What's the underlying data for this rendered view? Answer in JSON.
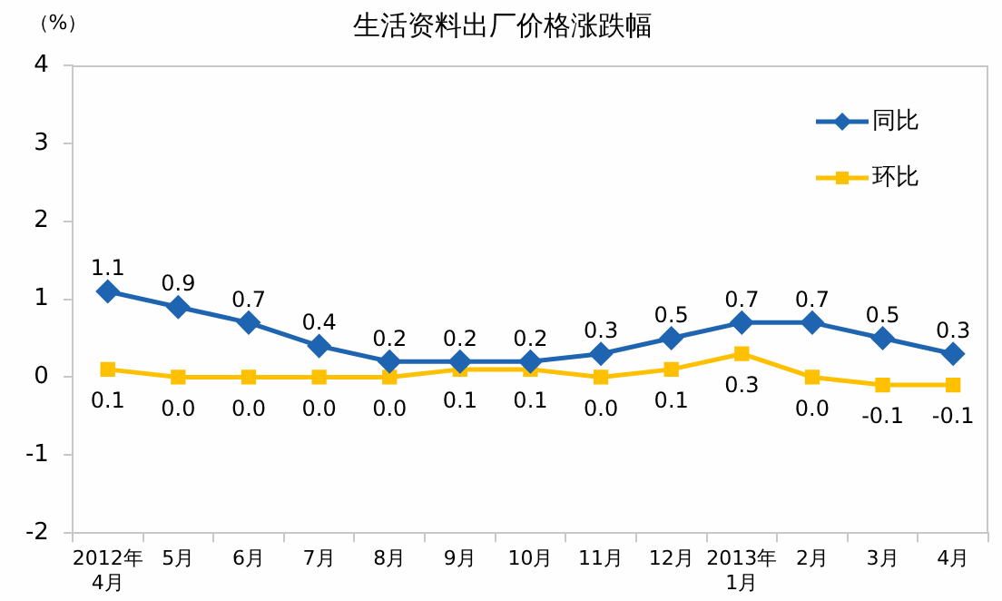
{
  "chart_data": {
    "type": "line",
    "title": "生活资料出厂价格涨跌幅",
    "ylabel": "（%）",
    "categories": [
      "2012年\n4月",
      "5月",
      "6月",
      "7月",
      "8月",
      "9月",
      "10月",
      "11月",
      "12月",
      "2013年\n1月",
      "2月",
      "3月",
      "4月"
    ],
    "series": [
      {
        "name": "同比",
        "color": "#1f64b0",
        "marker": "diamond",
        "values": [
          1.1,
          0.9,
          0.7,
          0.4,
          0.2,
          0.2,
          0.2,
          0.3,
          0.5,
          0.7,
          0.7,
          0.5,
          0.3
        ],
        "value_labels": [
          "1.1",
          "0.9",
          "0.7",
          "0.4",
          "0.2",
          "0.2",
          "0.2",
          "0.3",
          "0.5",
          "0.7",
          "0.7",
          "0.5",
          "0.3"
        ]
      },
      {
        "name": "环比",
        "color": "#ffc000",
        "marker": "square",
        "values": [
          0.1,
          0.0,
          0.0,
          0.0,
          0.0,
          0.1,
          0.1,
          0.0,
          0.1,
          0.3,
          0.0,
          -0.1,
          -0.1
        ],
        "value_labels": [
          "0.1",
          "0.0",
          "0.0",
          "0.0",
          "0.0",
          "0.1",
          "0.1",
          "0.0",
          "0.1",
          "0.3",
          "0.0",
          "-0.1",
          "-0.1"
        ]
      }
    ],
    "ylim": [
      -2,
      4
    ],
    "yticks": [
      -2,
      -1,
      0,
      1,
      2,
      3,
      4
    ],
    "grid": false,
    "legend": "top right"
  }
}
